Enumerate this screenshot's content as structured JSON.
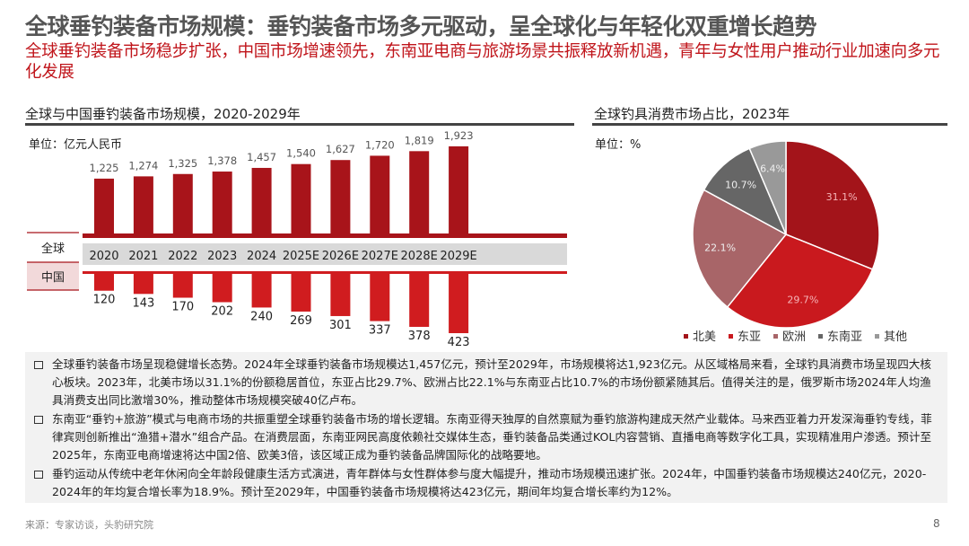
{
  "header": {
    "title": "全球垂钓装备市场规模：垂钓装备市场多元驱动，呈全球化与年轻化双重增长趋势",
    "subtitle": "全球垂钓装备市场稳步扩张，中国市场增速领先，东南亚电商与旅游场景共振释放新机遇，青年与女性用户推动行业加速向多元化发展"
  },
  "left_section": {
    "title": "全球与中国垂钓装备市场规模，2020-2029年",
    "unit": "单位：亿元人民币",
    "row_global": "全球",
    "row_china": "中国"
  },
  "right_section": {
    "title": "全球钓具消费市场占比，2023年",
    "unit": "单位：%"
  },
  "chart_data": [
    {
      "type": "bar",
      "categories": [
        "2020",
        "2021",
        "2022",
        "2023",
        "2024",
        "2025E",
        "2026E",
        "2027E",
        "2028E",
        "2029E"
      ],
      "series": [
        {
          "name": "全球",
          "values": [
            1225,
            1274,
            1325,
            1378,
            1457,
            1540,
            1627,
            1720,
            1819,
            1923
          ],
          "labels": [
            "1,225",
            "1,274",
            "1,325",
            "1,378",
            "1,457",
            "1,540",
            "1,627",
            "1,720",
            "1,819",
            "1,923"
          ],
          "color": "#a8141a",
          "direction": "up"
        },
        {
          "name": "中国",
          "values": [
            120,
            143,
            170,
            202,
            240,
            269,
            301,
            337,
            378,
            423
          ],
          "labels": [
            "120",
            "143",
            "170",
            "202",
            "240",
            "269",
            "301",
            "337",
            "378",
            "423"
          ],
          "color": "#d01c1f",
          "direction": "down"
        }
      ],
      "unit": "亿元人民币"
    },
    {
      "type": "pie",
      "slices": [
        {
          "name": "北美",
          "value": 31.1,
          "label": "31.1%",
          "color": "#a3141a"
        },
        {
          "name": "东亚",
          "value": 29.7,
          "label": "29.7%",
          "color": "#c9191e"
        },
        {
          "name": "欧洲",
          "value": 22.1,
          "label": "22.1%",
          "color": "#a86568"
        },
        {
          "name": "东南亚",
          "value": 10.7,
          "label": "10.7%",
          "color": "#666666"
        },
        {
          "name": "其他",
          "value": 6.4,
          "label": "6.4%",
          "color": "#999999"
        }
      ],
      "legend": "bottom"
    }
  ],
  "bullets": [
    "全球垂钓装备市场呈现稳健增长态势。2024年全球垂钓装备市场规模达1,457亿元，预计至2029年，市场规模将达1,923亿元。从区域格局来看，全球钓具消费市场呈现四大核心板块。2023年，北美市场以31.1%的份额稳居首位，东亚占比29.7%、欧洲占比22.1%与东南亚占比10.7%的市场份额紧随其后。值得关注的是，俄罗斯市场2024年人均渔具消费支出同比激增30%，推动整体市场规模突破40亿卢布。",
    "东南亚“垂钓+旅游”模式与电商市场的共振重塑全球垂钓装备市场的增长逻辑。东南亚得天独厚的自然禀赋为垂钓旅游构建成天然产业载体。马来西亚着力开发深海垂钓专线，菲律宾则创新推出“渔猎+潜水”组合产品。在消费层面，东南亚网民高度依赖社交媒体生态，垂钓装备品类通过KOL内容营销、直播电商等数字化工具，实现精准用户渗透。预计至2025年，东南亚电商增速将达中国2倍、欧美3倍，该区域正成为垂钓装备品牌国际化的战略要地。",
    "垂钓运动从传统中老年休闲向全年龄段健康生活方式演进，青年群体与女性群体参与度大幅提升，推动市场规模迅速扩张。2024年，中国垂钓装备市场规模达240亿元，2020-2024年的年均复合增长率为18.9%。预计至2029年，中国垂钓装备市场规模将达423亿元，期间年均复合增长率约为12%。"
  ],
  "footer": {
    "source": "来源：专家访谈，头豹研究院",
    "page": "8"
  }
}
